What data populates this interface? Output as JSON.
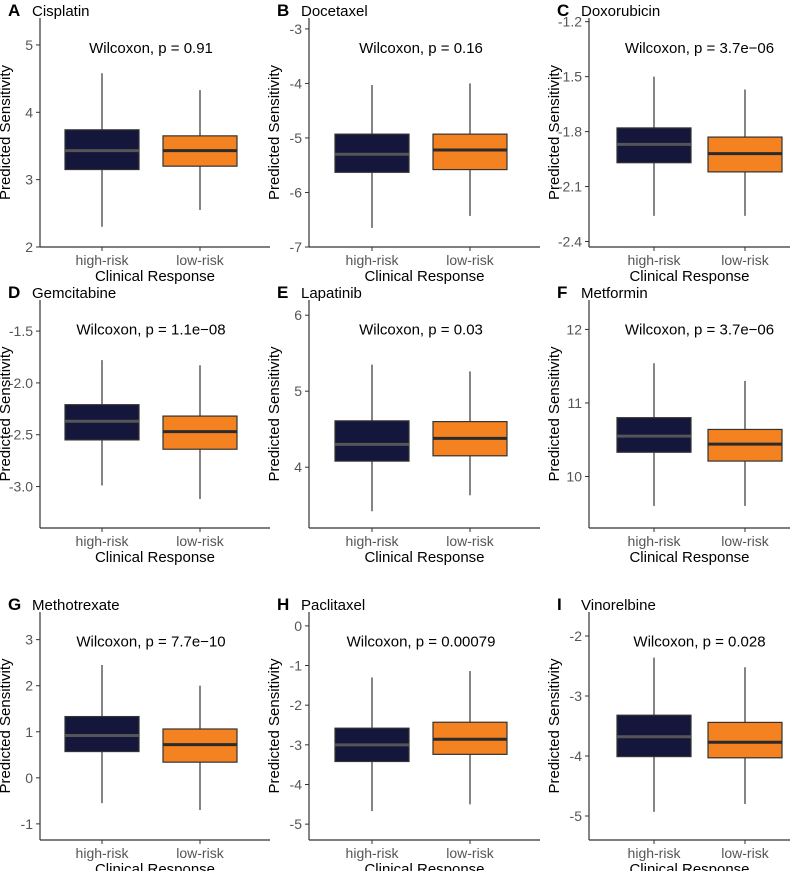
{
  "colors": {
    "high_risk": "#14163b",
    "low_risk": "#f58220",
    "median_high": "#555555",
    "median_low": "#2b2b2b",
    "axis": "#333333"
  },
  "chart_data": [
    {
      "type": "box",
      "panel": "A",
      "title": "Cisplatin",
      "annotation": "Wilcoxon, p = 0.91",
      "xlabel": "Clinical Response",
      "ylabel": "Predicted Sensitivity",
      "categories": [
        "high-risk",
        "low-risk"
      ],
      "ylim": [
        2,
        5.4
      ],
      "yticks": [
        2,
        3,
        4,
        5
      ],
      "boxes": [
        {
          "min": 2.3,
          "q1": 3.15,
          "median": 3.43,
          "q3": 3.74,
          "max": 4.58
        },
        {
          "min": 2.55,
          "q1": 3.2,
          "median": 3.43,
          "q3": 3.65,
          "max": 4.33
        }
      ]
    },
    {
      "type": "box",
      "panel": "B",
      "title": "Docetaxel",
      "annotation": "Wilcoxon, p = 0.16",
      "xlabel": "Clinical Response",
      "ylabel": "Predicted Sensitivity",
      "categories": [
        "high-risk",
        "low-risk"
      ],
      "ylim": [
        -7,
        -2.8
      ],
      "yticks": [
        -7,
        -6,
        -5,
        -4,
        -3
      ],
      "boxes": [
        {
          "min": -6.65,
          "q1": -5.63,
          "median": -5.3,
          "q3": -4.93,
          "max": -4.03
        },
        {
          "min": -6.43,
          "q1": -5.58,
          "median": -5.22,
          "q3": -4.93,
          "max": -4.0
        }
      ]
    },
    {
      "type": "box",
      "panel": "C",
      "title": "Doxorubicin",
      "annotation": "Wilcoxon, p = 3.7e−06",
      "xlabel": "Clinical Response",
      "ylabel": "Predicted Sensitivity",
      "categories": [
        "high-risk",
        "low-risk"
      ],
      "ylim": [
        -2.43,
        -1.18
      ],
      "yticks": [
        -2.4,
        -2.1,
        -1.8,
        -1.5,
        -1.2
      ],
      "ytick_labels": [
        "-2.4",
        "-2.1",
        "-1.8",
        "-1.5",
        "-1.2"
      ],
      "boxes": [
        {
          "min": -2.26,
          "q1": -1.97,
          "median": -1.87,
          "q3": -1.78,
          "max": -1.5
        },
        {
          "min": -2.26,
          "q1": -2.02,
          "median": -1.92,
          "q3": -1.83,
          "max": -1.57
        }
      ]
    },
    {
      "type": "box",
      "panel": "D",
      "title": "Gemcitabine",
      "annotation": "Wilcoxon, p = 1.1e−08",
      "xlabel": "Clinical Response",
      "ylabel": "Predicted Sensitivity",
      "categories": [
        "high-risk",
        "low-risk"
      ],
      "ylim": [
        -3.4,
        -1.2
      ],
      "yticks": [
        -3.0,
        -2.5,
        -2.0,
        -1.5
      ],
      "ytick_labels": [
        "-3.0",
        "-2.5",
        "-2.0",
        "-1.5"
      ],
      "boxes": [
        {
          "min": -2.99,
          "q1": -2.55,
          "median": -2.37,
          "q3": -2.21,
          "max": -1.78
        },
        {
          "min": -3.12,
          "q1": -2.64,
          "median": -2.47,
          "q3": -2.32,
          "max": -1.83
        }
      ]
    },
    {
      "type": "box",
      "panel": "E",
      "title": "Lapatinib",
      "annotation": "Wilcoxon, p = 0.03",
      "xlabel": "Clinical Response",
      "ylabel": "Predicted Sensitivity",
      "categories": [
        "high-risk",
        "low-risk"
      ],
      "ylim": [
        3.2,
        6.2
      ],
      "yticks": [
        4,
        5,
        6
      ],
      "boxes": [
        {
          "min": 3.42,
          "q1": 4.08,
          "median": 4.3,
          "q3": 4.61,
          "max": 5.35
        },
        {
          "min": 3.63,
          "q1": 4.15,
          "median": 4.38,
          "q3": 4.6,
          "max": 5.26
        }
      ]
    },
    {
      "type": "box",
      "panel": "F",
      "title": "Metformin",
      "annotation": "Wilcoxon, p = 3.7e−06",
      "xlabel": "Clinical Response",
      "ylabel": "Predicted Sensitivity",
      "categories": [
        "high-risk",
        "low-risk"
      ],
      "ylim": [
        9.3,
        12.4
      ],
      "yticks": [
        10,
        11,
        12
      ],
      "boxes": [
        {
          "min": 9.6,
          "q1": 10.33,
          "median": 10.55,
          "q3": 10.8,
          "max": 11.54
        },
        {
          "min": 9.6,
          "q1": 10.21,
          "median": 10.44,
          "q3": 10.64,
          "max": 11.3
        }
      ]
    },
    {
      "type": "box",
      "panel": "G",
      "title": "Methotrexate",
      "annotation": "Wilcoxon, p = 7.7e−10",
      "xlabel": "Clinical Response",
      "ylabel": "Predicted Sensitivity",
      "categories": [
        "high-risk",
        "low-risk"
      ],
      "ylim": [
        -1.35,
        3.6
      ],
      "yticks": [
        -1,
        0,
        1,
        2,
        3
      ],
      "ytick_labels": [
        "-1",
        "0",
        "1",
        "2",
        "3"
      ],
      "boxes": [
        {
          "min": -0.55,
          "q1": 0.57,
          "median": 0.92,
          "q3": 1.33,
          "max": 2.45
        },
        {
          "min": -0.7,
          "q1": 0.34,
          "median": 0.72,
          "q3": 1.06,
          "max": 2.0
        }
      ]
    },
    {
      "type": "box",
      "panel": "H",
      "title": "Paclitaxel",
      "annotation": "Wilcoxon, p = 0.00079",
      "xlabel": "Clinical Response",
      "ylabel": "Predicted Sensitivity",
      "categories": [
        "high-risk",
        "low-risk"
      ],
      "ylim": [
        -5.4,
        0.35
      ],
      "yticks": [
        -5,
        -4,
        -3,
        -2,
        -1,
        0
      ],
      "ytick_labels": [
        "-5",
        "-4",
        "-3",
        "-2",
        "-1",
        "0"
      ],
      "boxes": [
        {
          "min": -4.67,
          "q1": -3.42,
          "median": -3.0,
          "q3": -2.58,
          "max": -1.3
        },
        {
          "min": -4.5,
          "q1": -3.24,
          "median": -2.86,
          "q3": -2.43,
          "max": -1.14
        }
      ]
    },
    {
      "type": "box",
      "panel": "I",
      "title": "Vinorelbine",
      "annotation": "Wilcoxon, p = 0.028",
      "xlabel": "Clinical Response",
      "ylabel": "Predicted Sensitivity",
      "categories": [
        "high-risk",
        "low-risk"
      ],
      "ylim": [
        -5.4,
        -1.6
      ],
      "yticks": [
        -5,
        -4,
        -3,
        -2
      ],
      "ytick_labels": [
        "-5",
        "-4",
        "-3",
        "-2"
      ],
      "boxes": [
        {
          "min": -4.93,
          "q1": -4.01,
          "median": -3.68,
          "q3": -3.32,
          "max": -2.36
        },
        {
          "min": -4.8,
          "q1": -4.03,
          "median": -3.77,
          "q3": -3.44,
          "max": -2.52
        }
      ]
    }
  ]
}
